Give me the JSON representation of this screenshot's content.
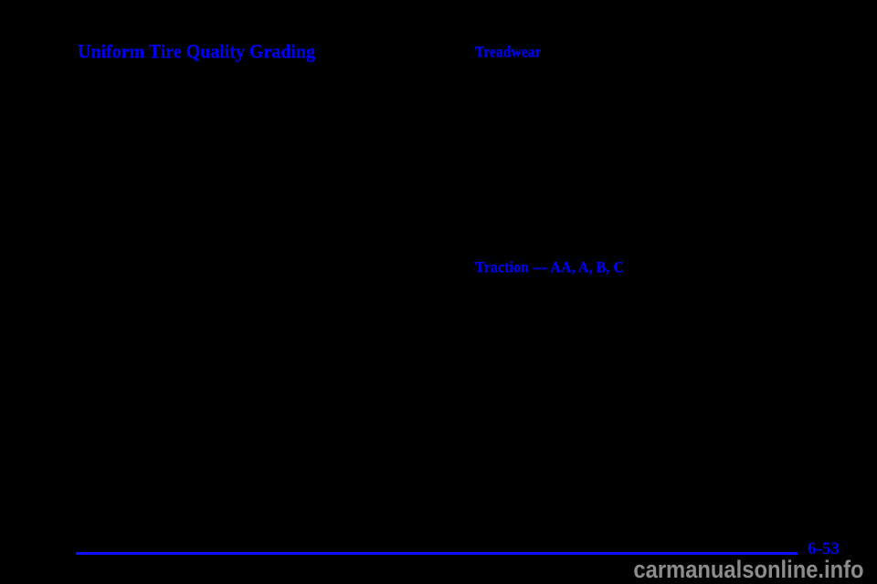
{
  "page": {
    "title": "Uniform Tire Quality Grading"
  },
  "sections": [
    {
      "heading": "Treadwear"
    },
    {
      "heading": "Traction — AA, A, B, C"
    }
  ],
  "footer": {
    "page_number": "6-53"
  },
  "watermark": {
    "text": "carmanualsonline.info"
  },
  "colors": {
    "background": "#000000",
    "heading_blue": "#0000f5",
    "line_blue": "#0f0fff",
    "watermark_gray": "#8c8c8c"
  }
}
